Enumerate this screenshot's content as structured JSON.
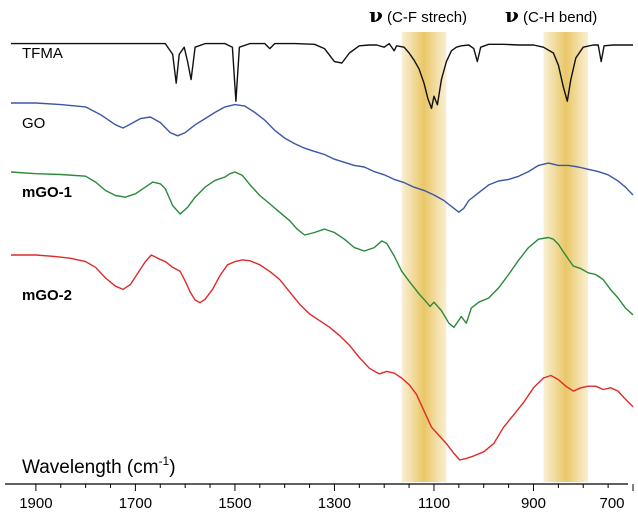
{
  "chart_data": {
    "type": "line",
    "title": "",
    "xlabel": "Wavelength (cm",
    "xlabel_sup": "-1",
    "xlabel_close": ")",
    "ylabel": "",
    "xlim": [
      1950,
      700
    ],
    "x_reversed": true,
    "ticks": [
      "1900",
      "1700",
      "1500",
      "1300",
      "1100",
      "900",
      "700"
    ],
    "tick_values": [
      1900,
      1700,
      1500,
      1300,
      1100,
      900,
      700
    ],
    "bands": [
      {
        "label_symbol": "ν",
        "label": " (C-F strech)",
        "from": 1165,
        "to": 1075,
        "color": "#e7c157"
      },
      {
        "label_symbol": "ν",
        "label": " (C-H bend)",
        "from": 880,
        "to": 790,
        "color": "#e7c157"
      }
    ],
    "series": [
      {
        "name": "TFMA",
        "bold": false,
        "color": "#111111",
        "points": [
          [
            1950,
            0.05
          ],
          [
            1800,
            0.05
          ],
          [
            1700,
            0.05
          ],
          [
            1660,
            0.05
          ],
          [
            1640,
            0.05
          ],
          [
            1625,
            0.2
          ],
          [
            1618,
            0.6
          ],
          [
            1612,
            0.2
          ],
          [
            1602,
            0.1
          ],
          [
            1595,
            0.3
          ],
          [
            1588,
            0.55
          ],
          [
            1580,
            0.1
          ],
          [
            1560,
            0.05
          ],
          [
            1520,
            0.05
          ],
          [
            1505,
            0.1
          ],
          [
            1498,
            0.85
          ],
          [
            1491,
            0.1
          ],
          [
            1470,
            0.05
          ],
          [
            1440,
            0.05
          ],
          [
            1430,
            0.12
          ],
          [
            1420,
            0.05
          ],
          [
            1380,
            0.05
          ],
          [
            1340,
            0.06
          ],
          [
            1320,
            0.12
          ],
          [
            1300,
            0.3
          ],
          [
            1285,
            0.32
          ],
          [
            1270,
            0.18
          ],
          [
            1250,
            0.08
          ],
          [
            1230,
            0.07
          ],
          [
            1215,
            0.07
          ],
          [
            1200,
            0.1
          ],
          [
            1190,
            0.05
          ],
          [
            1180,
            0.15
          ],
          [
            1175,
            0.08
          ],
          [
            1160,
            0.1
          ],
          [
            1150,
            0.18
          ],
          [
            1140,
            0.28
          ],
          [
            1130,
            0.4
          ],
          [
            1120,
            0.6
          ],
          [
            1112,
            0.82
          ],
          [
            1105,
            0.95
          ],
          [
            1100,
            0.78
          ],
          [
            1093,
            0.9
          ],
          [
            1085,
            0.55
          ],
          [
            1075,
            0.3
          ],
          [
            1065,
            0.15
          ],
          [
            1055,
            0.1
          ],
          [
            1045,
            0.08
          ],
          [
            1030,
            0.07
          ],
          [
            1020,
            0.12
          ],
          [
            1013,
            0.3
          ],
          [
            1006,
            0.1
          ],
          [
            990,
            0.06
          ],
          [
            960,
            0.06
          ],
          [
            930,
            0.07
          ],
          [
            900,
            0.07
          ],
          [
            880,
            0.1
          ],
          [
            860,
            0.18
          ],
          [
            850,
            0.35
          ],
          [
            840,
            0.65
          ],
          [
            832,
            0.85
          ],
          [
            825,
            0.55
          ],
          [
            815,
            0.25
          ],
          [
            800,
            0.1
          ],
          [
            780,
            0.07
          ],
          [
            770,
            0.07
          ],
          [
            764,
            0.3
          ],
          [
            758,
            0.08
          ],
          [
            740,
            0.07
          ],
          [
            720,
            0.07
          ],
          [
            700,
            0.07
          ]
        ]
      },
      {
        "name": "GO",
        "bold": false,
        "color": "#3a57a7",
        "points": [
          [
            1950,
            0.0
          ],
          [
            1900,
            0.0
          ],
          [
            1850,
            0.02
          ],
          [
            1800,
            0.05
          ],
          [
            1770,
            0.15
          ],
          [
            1740,
            0.28
          ],
          [
            1725,
            0.32
          ],
          [
            1710,
            0.27
          ],
          [
            1690,
            0.2
          ],
          [
            1670,
            0.18
          ],
          [
            1650,
            0.25
          ],
          [
            1630,
            0.38
          ],
          [
            1615,
            0.42
          ],
          [
            1600,
            0.38
          ],
          [
            1580,
            0.28
          ],
          [
            1560,
            0.2
          ],
          [
            1540,
            0.12
          ],
          [
            1520,
            0.05
          ],
          [
            1500,
            0.02
          ],
          [
            1480,
            0.04
          ],
          [
            1460,
            0.12
          ],
          [
            1440,
            0.22
          ],
          [
            1420,
            0.35
          ],
          [
            1400,
            0.45
          ],
          [
            1380,
            0.52
          ],
          [
            1360,
            0.58
          ],
          [
            1340,
            0.62
          ],
          [
            1320,
            0.66
          ],
          [
            1300,
            0.72
          ],
          [
            1280,
            0.76
          ],
          [
            1260,
            0.8
          ],
          [
            1240,
            0.82
          ],
          [
            1220,
            0.88
          ],
          [
            1200,
            0.92
          ],
          [
            1180,
            0.98
          ],
          [
            1160,
            1.02
          ],
          [
            1140,
            1.08
          ],
          [
            1120,
            1.12
          ],
          [
            1100,
            1.18
          ],
          [
            1080,
            1.25
          ],
          [
            1060,
            1.35
          ],
          [
            1050,
            1.4
          ],
          [
            1040,
            1.35
          ],
          [
            1030,
            1.25
          ],
          [
            1010,
            1.15
          ],
          [
            990,
            1.05
          ],
          [
            970,
            1.0
          ],
          [
            950,
            0.98
          ],
          [
            930,
            0.94
          ],
          [
            910,
            0.88
          ],
          [
            890,
            0.8
          ],
          [
            870,
            0.77
          ],
          [
            850,
            0.8
          ],
          [
            830,
            0.8
          ],
          [
            810,
            0.82
          ],
          [
            790,
            0.85
          ],
          [
            770,
            0.88
          ],
          [
            750,
            0.92
          ],
          [
            730,
            1.0
          ],
          [
            715,
            1.08
          ],
          [
            700,
            1.18
          ]
        ]
      },
      {
        "name": "mGO-1",
        "bold": true,
        "color": "#2a8a3a",
        "points": [
          [
            1950,
            0.0
          ],
          [
            1900,
            0.02
          ],
          [
            1850,
            0.03
          ],
          [
            1800,
            0.05
          ],
          [
            1780,
            0.12
          ],
          [
            1760,
            0.22
          ],
          [
            1740,
            0.28
          ],
          [
            1720,
            0.3
          ],
          [
            1700,
            0.26
          ],
          [
            1680,
            0.18
          ],
          [
            1665,
            0.12
          ],
          [
            1650,
            0.14
          ],
          [
            1640,
            0.2
          ],
          [
            1625,
            0.4
          ],
          [
            1610,
            0.5
          ],
          [
            1595,
            0.42
          ],
          [
            1580,
            0.3
          ],
          [
            1560,
            0.18
          ],
          [
            1540,
            0.1
          ],
          [
            1520,
            0.06
          ],
          [
            1510,
            0.02
          ],
          [
            1500,
            0.0
          ],
          [
            1485,
            0.04
          ],
          [
            1470,
            0.15
          ],
          [
            1450,
            0.28
          ],
          [
            1430,
            0.38
          ],
          [
            1410,
            0.48
          ],
          [
            1390,
            0.58
          ],
          [
            1375,
            0.68
          ],
          [
            1360,
            0.75
          ],
          [
            1340,
            0.72
          ],
          [
            1320,
            0.68
          ],
          [
            1300,
            0.72
          ],
          [
            1280,
            0.8
          ],
          [
            1260,
            0.9
          ],
          [
            1240,
            0.94
          ],
          [
            1220,
            0.9
          ],
          [
            1205,
            0.82
          ],
          [
            1195,
            0.85
          ],
          [
            1180,
            1.0
          ],
          [
            1165,
            1.18
          ],
          [
            1150,
            1.3
          ],
          [
            1130,
            1.45
          ],
          [
            1115,
            1.55
          ],
          [
            1108,
            1.6
          ],
          [
            1100,
            1.55
          ],
          [
            1085,
            1.65
          ],
          [
            1070,
            1.8
          ],
          [
            1060,
            1.85
          ],
          [
            1045,
            1.72
          ],
          [
            1035,
            1.8
          ],
          [
            1025,
            1.62
          ],
          [
            1010,
            1.55
          ],
          [
            990,
            1.5
          ],
          [
            970,
            1.38
          ],
          [
            950,
            1.22
          ],
          [
            930,
            1.05
          ],
          [
            910,
            0.9
          ],
          [
            890,
            0.8
          ],
          [
            870,
            0.78
          ],
          [
            860,
            0.8
          ],
          [
            850,
            0.86
          ],
          [
            840,
            0.95
          ],
          [
            820,
            1.12
          ],
          [
            805,
            1.15
          ],
          [
            790,
            1.2
          ],
          [
            775,
            1.22
          ],
          [
            760,
            1.28
          ],
          [
            745,
            1.4
          ],
          [
            730,
            1.5
          ],
          [
            715,
            1.62
          ],
          [
            700,
            1.7
          ]
        ]
      },
      {
        "name": "mGO-2",
        "bold": true,
        "color": "#e02a2a",
        "points": [
          [
            1950,
            0.0
          ],
          [
            1900,
            0.0
          ],
          [
            1860,
            0.02
          ],
          [
            1830,
            0.04
          ],
          [
            1800,
            0.08
          ],
          [
            1780,
            0.15
          ],
          [
            1760,
            0.28
          ],
          [
            1740,
            0.38
          ],
          [
            1725,
            0.42
          ],
          [
            1710,
            0.36
          ],
          [
            1695,
            0.22
          ],
          [
            1680,
            0.08
          ],
          [
            1668,
            0.0
          ],
          [
            1655,
            0.04
          ],
          [
            1640,
            0.08
          ],
          [
            1625,
            0.15
          ],
          [
            1610,
            0.2
          ],
          [
            1600,
            0.32
          ],
          [
            1590,
            0.45
          ],
          [
            1580,
            0.55
          ],
          [
            1570,
            0.58
          ],
          [
            1560,
            0.54
          ],
          [
            1545,
            0.42
          ],
          [
            1530,
            0.25
          ],
          [
            1515,
            0.12
          ],
          [
            1500,
            0.08
          ],
          [
            1485,
            0.06
          ],
          [
            1470,
            0.07
          ],
          [
            1450,
            0.12
          ],
          [
            1430,
            0.2
          ],
          [
            1410,
            0.3
          ],
          [
            1390,
            0.45
          ],
          [
            1370,
            0.6
          ],
          [
            1350,
            0.72
          ],
          [
            1330,
            0.8
          ],
          [
            1310,
            0.88
          ],
          [
            1290,
            0.98
          ],
          [
            1270,
            1.1
          ],
          [
            1250,
            1.25
          ],
          [
            1230,
            1.38
          ],
          [
            1210,
            1.45
          ],
          [
            1195,
            1.42
          ],
          [
            1180,
            1.44
          ],
          [
            1165,
            1.5
          ],
          [
            1150,
            1.58
          ],
          [
            1135,
            1.7
          ],
          [
            1120,
            1.9
          ],
          [
            1105,
            2.1
          ],
          [
            1090,
            2.2
          ],
          [
            1075,
            2.3
          ],
          [
            1060,
            2.42
          ],
          [
            1048,
            2.5
          ],
          [
            1035,
            2.48
          ],
          [
            1020,
            2.45
          ],
          [
            1000,
            2.4
          ],
          [
            980,
            2.3
          ],
          [
            960,
            2.1
          ],
          [
            940,
            1.95
          ],
          [
            920,
            1.8
          ],
          [
            900,
            1.62
          ],
          [
            880,
            1.5
          ],
          [
            865,
            1.47
          ],
          [
            850,
            1.52
          ],
          [
            835,
            1.6
          ],
          [
            820,
            1.66
          ],
          [
            805,
            1.62
          ],
          [
            790,
            1.6
          ],
          [
            775,
            1.6
          ],
          [
            760,
            1.64
          ],
          [
            745,
            1.62
          ],
          [
            730,
            1.66
          ],
          [
            715,
            1.76
          ],
          [
            700,
            1.85
          ]
        ]
      }
    ]
  }
}
